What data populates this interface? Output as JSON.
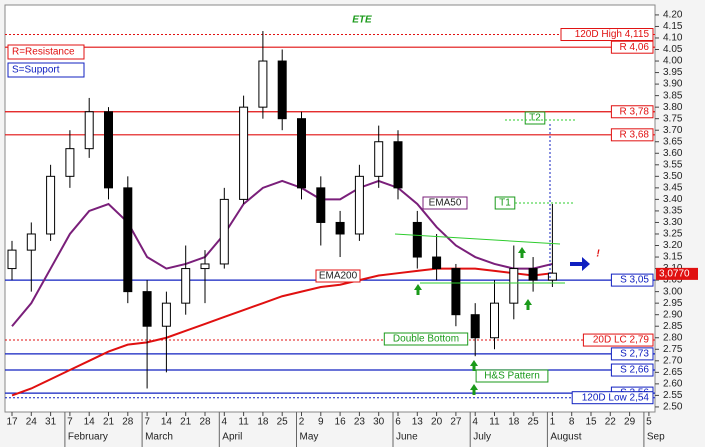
{
  "chart_data": {
    "type": "candlestick",
    "title": "ETE",
    "legend": [
      "R=Resistance",
      "S=Support"
    ],
    "categories": [
      "17",
      "24",
      "31",
      "7",
      "14",
      "21",
      "28",
      "7",
      "14",
      "21",
      "28",
      "4",
      "11",
      "18",
      "25",
      "2",
      "9",
      "16",
      "23",
      "30",
      "6",
      "13",
      "20",
      "27",
      "4",
      "11",
      "18",
      "25",
      "1",
      "8",
      "15",
      "22",
      "29",
      "5"
    ],
    "months": [
      "February",
      "March",
      "April",
      "May",
      "June",
      "July",
      "August",
      "Sep"
    ],
    "open": [
      3.1,
      3.18,
      3.25,
      3.5,
      3.62,
      3.78,
      3.45,
      3.0,
      2.85,
      2.95,
      3.1,
      3.12,
      3.4,
      3.8,
      4.0,
      3.75,
      3.45,
      3.3,
      3.25,
      3.5,
      3.65,
      3.3,
      3.15,
      3.1,
      2.9,
      2.8,
      2.95,
      3.1,
      3.05,
      null,
      null,
      null,
      null,
      null
    ],
    "high": [
      3.22,
      3.3,
      3.55,
      3.7,
      3.84,
      3.8,
      3.5,
      3.05,
      3.0,
      3.2,
      3.18,
      3.45,
      3.85,
      4.13,
      4.05,
      3.78,
      3.5,
      3.35,
      3.55,
      3.72,
      3.7,
      3.35,
      3.25,
      3.12,
      2.95,
      3.05,
      3.2,
      3.15,
      3.38,
      null,
      null,
      null,
      null,
      null
    ],
    "low": [
      3.05,
      3.0,
      3.22,
      3.45,
      3.58,
      3.4,
      2.95,
      2.58,
      2.65,
      2.9,
      2.95,
      3.1,
      3.38,
      3.75,
      3.7,
      3.4,
      3.2,
      3.15,
      3.22,
      3.45,
      3.4,
      3.1,
      3.05,
      2.85,
      2.72,
      2.75,
      2.88,
      3.0,
      3.02,
      null,
      null,
      null,
      null,
      null
    ],
    "close": [
      3.18,
      3.25,
      3.5,
      3.62,
      3.78,
      3.45,
      3.0,
      2.85,
      2.95,
      3.1,
      3.12,
      3.4,
      3.8,
      4.0,
      3.75,
      3.45,
      3.3,
      3.25,
      3.5,
      3.65,
      3.45,
      3.15,
      3.1,
      2.9,
      2.8,
      2.95,
      3.1,
      3.05,
      3.08,
      null,
      null,
      null,
      null,
      null
    ],
    "series": [
      {
        "name": "EMA50",
        "color": "#7a1f7a",
        "values": [
          2.85,
          2.95,
          3.1,
          3.25,
          3.35,
          3.38,
          3.3,
          3.15,
          3.1,
          3.12,
          3.15,
          3.25,
          3.38,
          3.45,
          3.48,
          3.45,
          3.4,
          3.4,
          3.45,
          3.48,
          3.45,
          3.38,
          3.28,
          3.2,
          3.15,
          3.12,
          3.1,
          3.1,
          3.12,
          null,
          null,
          null,
          null,
          null
        ]
      },
      {
        "name": "EMA200",
        "color": "#e01010",
        "values": [
          2.55,
          2.58,
          2.62,
          2.66,
          2.7,
          2.74,
          2.77,
          2.78,
          2.8,
          2.83,
          2.86,
          2.89,
          2.92,
          2.95,
          2.98,
          3.0,
          3.02,
          3.03,
          3.05,
          3.07,
          3.08,
          3.09,
          3.1,
          3.1,
          3.1,
          3.09,
          3.08,
          3.07,
          3.08,
          null,
          null,
          null,
          null,
          null
        ]
      }
    ],
    "levels": [
      {
        "value": 4.115,
        "label": "120D High 4,115",
        "color": "#e01010",
        "dotted": true
      },
      {
        "value": 4.06,
        "label": "R 4,06",
        "color": "#e01010",
        "dotted": false
      },
      {
        "value": 3.78,
        "label": "R 3,78",
        "color": "#e01010",
        "dotted": false
      },
      {
        "value": 3.68,
        "label": "R 3,68",
        "color": "#e01010",
        "dotted": false
      },
      {
        "value": 3.05,
        "label": "S 3,05",
        "color": "#1020c0",
        "dotted": false
      },
      {
        "value": 2.79,
        "label": "20D LC 2,79",
        "color": "#e01010",
        "dotted": true
      },
      {
        "value": 2.73,
        "label": "S 2,73",
        "color": "#1020c0",
        "dotted": false
      },
      {
        "value": 2.66,
        "label": "S 2,66",
        "color": "#1020c0",
        "dotted": false
      },
      {
        "value": 2.56,
        "label": "S 2,56",
        "color": "#1020c0",
        "dotted": false
      },
      {
        "value": 2.54,
        "label": "120D Low 2,54",
        "color": "#1020c0",
        "dotted": true
      }
    ],
    "last_price": {
      "value": 3.077,
      "label": "3,0770"
    },
    "annotations": [
      "T1",
      "T2",
      "Double Bottom",
      "H&S Pattern",
      "!"
    ],
    "ylim": [
      2.478,
      4.243
    ],
    "yticks": [
      {
        "value": 2.5,
        "label": "2.50"
      },
      {
        "value": 2.55,
        "label": "2.55"
      },
      {
        "value": 2.6,
        "label": "2.60"
      },
      {
        "value": 2.65,
        "label": "2.65"
      },
      {
        "value": 2.7,
        "label": "2.70"
      },
      {
        "value": 2.75,
        "label": "2.75"
      },
      {
        "value": 2.8,
        "label": "2.80"
      },
      {
        "value": 2.85,
        "label": "2.85"
      },
      {
        "value": 2.9,
        "label": "2.90"
      },
      {
        "value": 2.95,
        "label": "2.95"
      },
      {
        "value": 3.0,
        "label": "3.00"
      },
      {
        "value": 3.05,
        "label": "3.05"
      },
      {
        "value": 3.1,
        "label": "3.10"
      },
      {
        "value": 3.15,
        "label": "3.15"
      },
      {
        "value": 3.2,
        "label": "3.20"
      },
      {
        "value": 3.25,
        "label": "3.25"
      },
      {
        "value": 3.3,
        "label": "3.30"
      },
      {
        "value": 3.35,
        "label": "3.35"
      },
      {
        "value": 3.4,
        "label": "3.40"
      },
      {
        "value": 3.45,
        "label": "3.45"
      },
      {
        "value": 3.5,
        "label": "3.50"
      },
      {
        "value": 3.55,
        "label": "3.55"
      },
      {
        "value": 3.6,
        "label": "3.60"
      },
      {
        "value": 3.65,
        "label": "3.65"
      },
      {
        "value": 3.7,
        "label": "3.70"
      },
      {
        "value": 3.75,
        "label": "3.75"
      },
      {
        "value": 3.8,
        "label": "3.80"
      },
      {
        "value": 3.85,
        "label": "3.85"
      },
      {
        "value": 3.9,
        "label": "3.90"
      },
      {
        "value": 3.95,
        "label": "3.95"
      },
      {
        "value": 4.0,
        "label": "4.00"
      },
      {
        "value": 4.05,
        "label": "4.05"
      },
      {
        "value": 4.1,
        "label": "4.10"
      },
      {
        "value": 4.15,
        "label": "4.15"
      },
      {
        "value": 4.2,
        "label": "4.20"
      }
    ]
  }
}
